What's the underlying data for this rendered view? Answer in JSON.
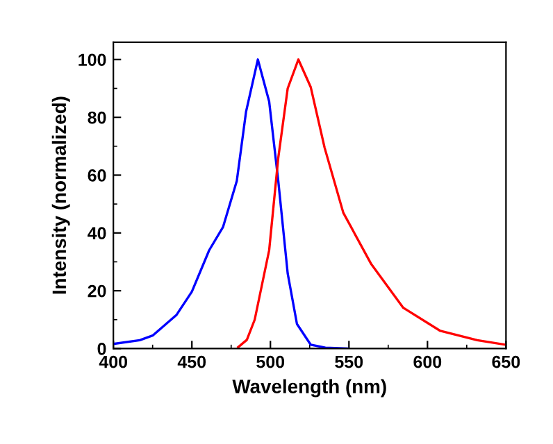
{
  "chart_data": {
    "type": "line",
    "xlabel": "Wavelength (nm)",
    "ylabel": "Intensity (normalized)",
    "xlim": [
      400,
      650
    ],
    "xticks": [
      400,
      450,
      500,
      550,
      600,
      650
    ],
    "ylim": [
      0,
      106
    ],
    "yticks": [
      0,
      20,
      40,
      60,
      80,
      100
    ],
    "grid": false,
    "marker": "none",
    "line_style": "solid",
    "series": [
      {
        "color": "#0000ff",
        "x": [
          400,
          416.8,
          425,
          440.3,
          450,
          461,
          469.8,
          478.6,
          484.5,
          492,
          499.2,
          505,
          511,
          516.9,
          525.7,
          535,
          549
        ],
        "values": [
          1.6,
          2.9,
          4.5,
          11.7,
          19.7,
          34,
          42,
          58,
          82,
          100,
          85.5,
          58,
          26,
          8.5,
          1.3,
          0.3,
          0
        ]
      },
      {
        "color": "#ff0000",
        "x": [
          479.5,
          485,
          490,
          499.2,
          505,
          511,
          517.8,
          525.7,
          534.5,
          546.4,
          564,
          584.6,
          608.2,
          631.7,
          650
        ],
        "values": [
          0.5,
          3,
          10,
          34,
          66,
          90,
          100,
          90.4,
          69.5,
          47,
          29.4,
          14.1,
          6.1,
          2.9,
          1.3
        ]
      }
    ]
  }
}
